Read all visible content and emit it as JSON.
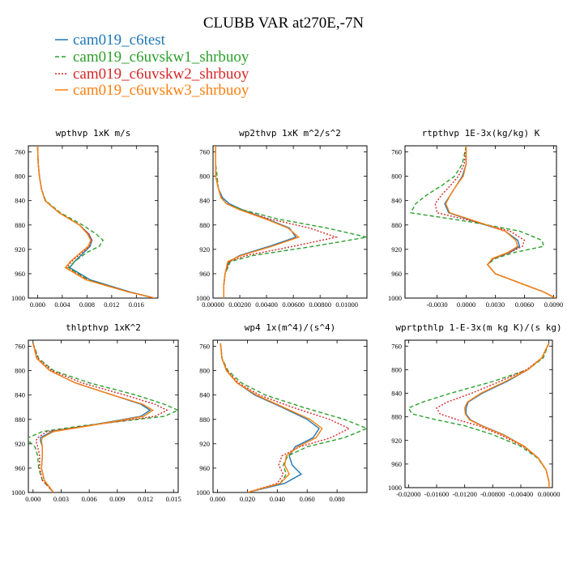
{
  "figure": {
    "title": "CLUBB VAR at270E,-7N"
  },
  "chart_data": [
    {
      "type": "line",
      "title": "wpthvp  1xK m/s",
      "ylim": [
        1000,
        750
      ],
      "yticks": [
        760,
        800,
        840,
        880,
        920,
        960,
        1000
      ],
      "xlim": [
        -0.0015,
        0.0195
      ],
      "xticks": [
        0.0,
        0.004,
        0.008,
        0.012,
        0.016
      ],
      "xticklabels": [
        "0.000",
        "0.004",
        "0.008",
        "0.012",
        "0.016"
      ],
      "y": [
        750,
        780,
        800,
        820,
        840,
        860,
        880,
        895,
        905,
        915,
        925,
        940,
        950,
        970,
        990,
        1000
      ],
      "series": [
        {
          "name": "cam019_c6test",
          "x": [
            0.0,
            0.0001,
            0.0003,
            0.0006,
            0.0012,
            0.0035,
            0.0068,
            0.0083,
            0.0088,
            0.0085,
            0.0075,
            0.006,
            0.0052,
            0.0085,
            0.015,
            0.019
          ]
        },
        {
          "name": "cam019_c6uvskw1_shrbuoy",
          "x": [
            0.0,
            0.0001,
            0.0003,
            0.0006,
            0.0013,
            0.0037,
            0.0073,
            0.0095,
            0.0106,
            0.01,
            0.008,
            0.006,
            0.005,
            0.0082,
            0.0148,
            0.019
          ]
        },
        {
          "name": "cam019_c6uvskw2_shrbuoy",
          "x": [
            0.0,
            0.0001,
            0.0003,
            0.0006,
            0.0012,
            0.0035,
            0.0068,
            0.0083,
            0.0088,
            0.0084,
            0.0072,
            0.0055,
            0.0047,
            0.008,
            0.0148,
            0.019
          ]
        },
        {
          "name": "cam019_c6uvskw3_shrbuoy",
          "x": [
            0.0,
            0.0001,
            0.0003,
            0.0006,
            0.0012,
            0.0035,
            0.0068,
            0.0081,
            0.0086,
            0.0082,
            0.007,
            0.0053,
            0.0045,
            0.0078,
            0.0147,
            0.019
          ]
        }
      ]
    },
    {
      "type": "line",
      "title": "wp2thvp  1xK m^2/s^2",
      "ylim": [
        1000,
        750
      ],
      "yticks": [
        760,
        800,
        840,
        880,
        920,
        960,
        1000
      ],
      "xlim": [
        0.0,
        0.0115
      ],
      "xticks": [
        0.0,
        0.002,
        0.004,
        0.006,
        0.008,
        0.01
      ],
      "xticklabels": [
        "0.00000",
        "0.00200",
        "0.00400",
        "0.00600",
        "0.00800",
        "0.01000"
      ],
      "y": [
        750,
        780,
        800,
        820,
        835,
        845,
        855,
        870,
        885,
        900,
        915,
        930,
        940,
        960,
        980,
        1000
      ],
      "series": [
        {
          "name": "cam019_c6test",
          "x": [
            0.0002,
            0.0002,
            0.0002,
            0.0004,
            0.0007,
            0.0012,
            0.0022,
            0.004,
            0.0057,
            0.0062,
            0.0042,
            0.002,
            0.0012,
            0.0009,
            0.0008,
            0.0008
          ]
        },
        {
          "name": "cam019_c6uvskw1_shrbuoy",
          "x": [
            0.0002,
            0.0002,
            0.0003,
            0.0004,
            0.0006,
            0.001,
            0.0022,
            0.0048,
            0.0085,
            0.0115,
            0.0075,
            0.003,
            0.0013,
            0.0009,
            0.0008,
            0.0008
          ]
        },
        {
          "name": "cam019_c6uvskw2_shrbuoy",
          "x": [
            0.0002,
            0.0002,
            0.0002,
            0.0004,
            0.0006,
            0.001,
            0.002,
            0.0042,
            0.0072,
            0.0092,
            0.006,
            0.0025,
            0.0012,
            0.0009,
            0.0008,
            0.0008
          ]
        },
        {
          "name": "cam019_c6uvskw3_shrbuoy",
          "x": [
            0.0002,
            0.0002,
            0.0002,
            0.0004,
            0.0006,
            0.001,
            0.002,
            0.0039,
            0.0056,
            0.0064,
            0.0044,
            0.0021,
            0.0011,
            0.0009,
            0.0008,
            0.0008
          ]
        }
      ]
    },
    {
      "type": "line",
      "title": "rtpthvp  1E-3x(kg/kg) K",
      "ylim": [
        1000,
        750
      ],
      "yticks": [
        760,
        800,
        840,
        880,
        920,
        960,
        1000
      ],
      "xlim": [
        -0.0063,
        0.0093
      ],
      "xticks": [
        -0.003,
        0.0,
        0.003,
        0.006,
        0.009
      ],
      "xticklabels": [
        "-0.0030",
        "0.0000",
        "0.0030",
        "0.0060",
        "0.0090"
      ],
      "y": [
        750,
        780,
        800,
        815,
        830,
        845,
        860,
        875,
        890,
        905,
        915,
        925,
        935,
        945,
        960,
        975,
        990,
        1000
      ],
      "series": [
        {
          "name": "cam019_c6test",
          "x": [
            0.0,
            0.0,
            -0.0004,
            -0.001,
            -0.0016,
            -0.0022,
            -0.0018,
            0.001,
            0.004,
            0.0053,
            0.0055,
            0.0045,
            0.0028,
            0.0022,
            0.003,
            0.0055,
            0.008,
            0.0092
          ]
        },
        {
          "name": "cam019_c6uvskw1_shrbuoy",
          "x": [
            0.0,
            -0.0004,
            -0.0012,
            -0.0025,
            -0.004,
            -0.0052,
            -0.0057,
            0.0005,
            0.0055,
            0.0078,
            0.008,
            0.005,
            0.003,
            0.0022,
            0.003,
            0.0055,
            0.008,
            0.0092
          ]
        },
        {
          "name": "cam019_c6uvskw2_shrbuoy",
          "x": [
            0.0,
            -0.0002,
            -0.0008,
            -0.0016,
            -0.0025,
            -0.0032,
            -0.003,
            0.001,
            0.0045,
            0.006,
            0.0058,
            0.0045,
            0.0028,
            0.0022,
            0.003,
            0.0055,
            0.008,
            0.0092
          ]
        },
        {
          "name": "cam019_c6uvskw3_shrbuoy",
          "x": [
            0.0,
            0.0,
            -0.0003,
            -0.001,
            -0.0016,
            -0.0021,
            -0.0017,
            0.0012,
            0.004,
            0.0051,
            0.0053,
            0.0043,
            0.0027,
            0.0022,
            0.003,
            0.0055,
            0.008,
            0.0092
          ]
        }
      ]
    },
    {
      "type": "line",
      "title": "thlpthvp  1xK^2",
      "ylim": [
        1000,
        750
      ],
      "yticks": [
        760,
        800,
        840,
        880,
        920,
        960,
        1000
      ],
      "xlim": [
        -0.0005,
        0.0155
      ],
      "xticks": [
        0.0,
        0.003,
        0.006,
        0.009,
        0.012,
        0.015
      ],
      "xticklabels": [
        "0.000",
        "0.003",
        "0.006",
        "0.009",
        "0.012",
        "0.015"
      ],
      "y": [
        755,
        780,
        800,
        820,
        840,
        855,
        865,
        875,
        890,
        900,
        910,
        915,
        925,
        940,
        960,
        980,
        1000
      ],
      "series": [
        {
          "name": "cam019_c6test",
          "x": [
            0.0,
            0.0004,
            0.0018,
            0.0045,
            0.0085,
            0.0115,
            0.0125,
            0.0115,
            0.006,
            0.002,
            0.0008,
            0.0008,
            0.001,
            0.001,
            0.0009,
            0.0012,
            0.0022
          ]
        },
        {
          "name": "cam019_c6uvskw1_shrbuoy",
          "x": [
            0.0,
            0.0006,
            0.0022,
            0.006,
            0.011,
            0.014,
            0.0155,
            0.014,
            0.0055,
            0.001,
            -0.0005,
            -0.0005,
            0.0002,
            0.0005,
            0.0006,
            0.001,
            0.0022
          ]
        },
        {
          "name": "cam019_c6uvskw2_shrbuoy",
          "x": [
            0.0,
            0.0005,
            0.002,
            0.0052,
            0.0098,
            0.013,
            0.0143,
            0.013,
            0.006,
            0.0015,
            0.0005,
            0.0003,
            0.0005,
            0.0007,
            0.0007,
            0.001,
            0.0022
          ]
        },
        {
          "name": "cam019_c6uvskw3_shrbuoy",
          "x": [
            0.0,
            0.0004,
            0.0018,
            0.0045,
            0.0085,
            0.0117,
            0.0128,
            0.0118,
            0.0062,
            0.0022,
            0.001,
            0.0009,
            0.001,
            0.001,
            0.0009,
            0.0012,
            0.0022
          ]
        }
      ]
    },
    {
      "type": "line",
      "title": "wp4  1x(m^4)/(s^4)",
      "ylim": [
        1000,
        750
      ],
      "yticks": [
        760,
        800,
        840,
        880,
        920,
        960,
        1000
      ],
      "xlim": [
        -0.003,
        0.1
      ],
      "xticks": [
        0.0,
        0.02,
        0.04,
        0.06,
        0.08
      ],
      "xticklabels": [
        "0.000",
        "0.020",
        "0.040",
        "0.060",
        "0.080"
      ],
      "y": [
        755,
        780,
        800,
        820,
        840,
        860,
        880,
        895,
        910,
        925,
        940,
        955,
        970,
        985,
        1000
      ],
      "series": [
        {
          "name": "cam019_c6test",
          "x": [
            0.002,
            0.003,
            0.006,
            0.013,
            0.025,
            0.043,
            0.06,
            0.068,
            0.064,
            0.052,
            0.048,
            0.05,
            0.056,
            0.045,
            0.02
          ]
        },
        {
          "name": "cam019_c6uvskw1_shrbuoy",
          "x": [
            0.002,
            0.003,
            0.007,
            0.016,
            0.032,
            0.057,
            0.085,
            0.1,
            0.085,
            0.06,
            0.047,
            0.044,
            0.046,
            0.042,
            0.02
          ]
        },
        {
          "name": "cam019_c6uvskw2_shrbuoy",
          "x": [
            0.002,
            0.003,
            0.0065,
            0.014,
            0.028,
            0.05,
            0.075,
            0.088,
            0.076,
            0.055,
            0.043,
            0.041,
            0.044,
            0.04,
            0.02
          ]
        },
        {
          "name": "cam019_c6uvskw3_shrbuoy",
          "x": [
            0.002,
            0.003,
            0.006,
            0.013,
            0.026,
            0.044,
            0.062,
            0.07,
            0.066,
            0.054,
            0.046,
            0.045,
            0.048,
            0.042,
            0.02
          ]
        }
      ]
    },
    {
      "type": "line",
      "title": "wprtpthlp  1-E-3x(m kg K)/(s kg)",
      "ylim": [
        1000,
        750
      ],
      "yticks": [
        760,
        800,
        840,
        880,
        920,
        960,
        1000
      ],
      "xlim": [
        -0.0205,
        0.0005
      ],
      "xticks": [
        -0.02,
        -0.016,
        -0.012,
        -0.008,
        -0.004,
        0.0
      ],
      "xticklabels": [
        "-0.02000",
        "-0.01600",
        "-0.01200",
        "-0.00800",
        "-0.00400",
        "0.00000"
      ],
      "y": [
        755,
        780,
        800,
        820,
        840,
        855,
        865,
        875,
        885,
        895,
        910,
        930,
        950,
        970,
        990,
        1000
      ],
      "series": [
        {
          "name": "cam019_c6test",
          "x": [
            0.0,
            -0.001,
            -0.003,
            -0.006,
            -0.0095,
            -0.0115,
            -0.0118,
            -0.0118,
            -0.0112,
            -0.0095,
            -0.0065,
            -0.0035,
            -0.0015,
            -0.0004,
            0.0,
            0.0
          ]
        },
        {
          "name": "cam019_c6uvskw1_shrbuoy",
          "x": [
            0.0,
            -0.0008,
            -0.003,
            -0.008,
            -0.014,
            -0.018,
            -0.02,
            -0.0195,
            -0.016,
            -0.012,
            -0.008,
            -0.004,
            -0.0016,
            -0.0004,
            0.0,
            0.0
          ]
        },
        {
          "name": "cam019_c6uvskw2_shrbuoy",
          "x": [
            0.0,
            -0.001,
            -0.0032,
            -0.007,
            -0.011,
            -0.0145,
            -0.016,
            -0.0155,
            -0.013,
            -0.01,
            -0.007,
            -0.0037,
            -0.0015,
            -0.0004,
            0.0,
            0.0
          ]
        },
        {
          "name": "cam019_c6uvskw3_shrbuoy",
          "x": [
            0.0,
            -0.001,
            -0.003,
            -0.0062,
            -0.0097,
            -0.0116,
            -0.012,
            -0.0119,
            -0.0113,
            -0.0096,
            -0.0066,
            -0.0035,
            -0.0015,
            -0.0004,
            0.0,
            0.0
          ]
        }
      ]
    }
  ],
  "legend": [
    {
      "name": "cam019_c6test",
      "color": "#1f77b4",
      "dash": "solid"
    },
    {
      "name": "cam019_c6uvskw1_shrbuoy",
      "color": "#2ca02c",
      "dash": "dashed"
    },
    {
      "name": "cam019_c6uvskw2_shrbuoy",
      "color": "#d62728",
      "dash": "dotted"
    },
    {
      "name": "cam019_c6uvskw3_shrbuoy",
      "color": "#ff7f0e",
      "dash": "solid"
    }
  ]
}
